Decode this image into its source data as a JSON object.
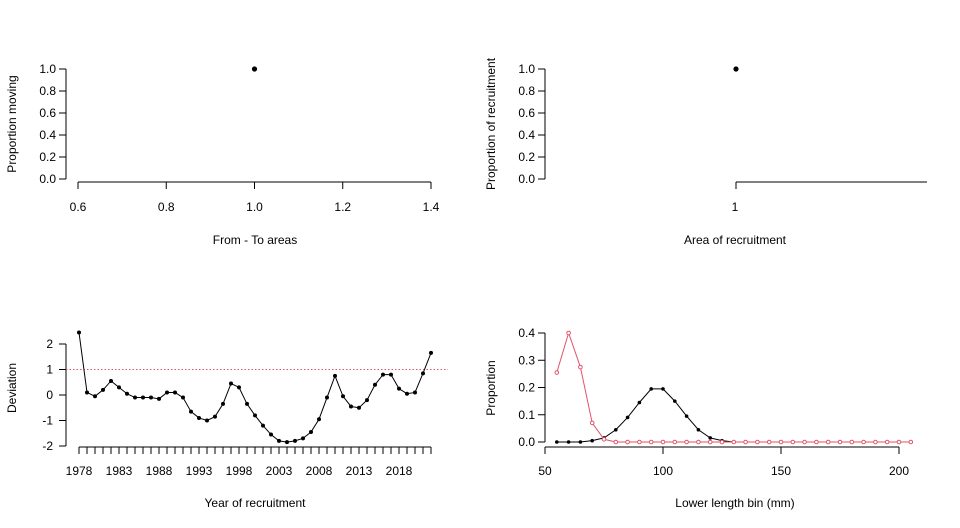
{
  "chart_data": [
    {
      "type": "scatter",
      "xlabel": "From - To areas",
      "ylabel": "Proportion moving",
      "xlim": [
        0.6,
        1.4
      ],
      "ylim": [
        0,
        1
      ],
      "xticks": [
        "0.6",
        "0.8",
        "1.0",
        "1.2",
        "1.4"
      ],
      "yticks": [
        "0.0",
        "0.2",
        "0.4",
        "0.6",
        "0.8",
        "1.0"
      ],
      "points": [
        {
          "x": 1.0,
          "y": 1.0
        }
      ]
    },
    {
      "type": "scatter",
      "xlabel": "Area of recruitment",
      "ylabel": "Proportion of recruitment",
      "xticks": [
        "1"
      ],
      "yticks": [
        "0.0",
        "0.2",
        "0.4",
        "0.6",
        "0.8",
        "1.0"
      ],
      "ylim": [
        0,
        1
      ],
      "points": [
        {
          "x": 1,
          "y": 1.0
        }
      ]
    },
    {
      "type": "line",
      "xlabel": "Year of recruitment",
      "ylabel": "Deviation",
      "xlim": [
        1978,
        2022
      ],
      "ylim": [
        -2,
        2
      ],
      "xticks": [
        "1978",
        "1983",
        "1988",
        "1993",
        "1998",
        "2003",
        "2008",
        "2013",
        "2018"
      ],
      "yticks": [
        "-2",
        "-1",
        "0",
        "1",
        "2"
      ],
      "reference_line": {
        "y": 1,
        "color": "#df536b",
        "style": "dotted"
      },
      "x": [
        1978,
        1979,
        1980,
        1981,
        1982,
        1983,
        1984,
        1985,
        1986,
        1987,
        1988,
        1989,
        1990,
        1991,
        1992,
        1993,
        1994,
        1995,
        1996,
        1997,
        1998,
        1999,
        2000,
        2001,
        2002,
        2003,
        2004,
        2005,
        2006,
        2007,
        2008,
        2009,
        2010,
        2011,
        2012,
        2013,
        2014,
        2015,
        2016,
        2017,
        2018,
        2019,
        2020,
        2021,
        2022
      ],
      "values": [
        2.45,
        0.1,
        -0.05,
        0.2,
        0.55,
        0.3,
        0.05,
        -0.1,
        -0.1,
        -0.1,
        -0.15,
        0.1,
        0.1,
        -0.1,
        -0.65,
        -0.9,
        -1.0,
        -0.85,
        -0.35,
        0.45,
        0.3,
        -0.35,
        -0.8,
        -1.2,
        -1.55,
        -1.8,
        -1.85,
        -1.8,
        -1.7,
        -1.45,
        -0.95,
        -0.1,
        0.75,
        -0.05,
        -0.45,
        -0.5,
        -0.2,
        0.4,
        0.8,
        0.8,
        0.25,
        0.05,
        0.1,
        0.85,
        1.65
      ]
    },
    {
      "type": "line",
      "xlabel": "Lower length bin (mm)",
      "ylabel": "Proportion",
      "xlim": [
        50,
        210
      ],
      "ylim": [
        0,
        0.4
      ],
      "xticks": [
        "50",
        "100",
        "150",
        "200"
      ],
      "yticks": [
        "0.0",
        "0.1",
        "0.2",
        "0.3",
        "0.4"
      ],
      "x": [
        55,
        60,
        65,
        70,
        75,
        80,
        85,
        90,
        95,
        100,
        105,
        110,
        115,
        120,
        125,
        130,
        135,
        140,
        145,
        150,
        155,
        160,
        165,
        170,
        175,
        180,
        185,
        190,
        195,
        200,
        205
      ],
      "series": [
        {
          "color": "#000000",
          "values": [
            0.0,
            0.0,
            0.0,
            0.005,
            0.015,
            0.045,
            0.09,
            0.145,
            0.195,
            0.195,
            0.15,
            0.095,
            0.045,
            0.015,
            0.005,
            0.0,
            0.0,
            0.0,
            0.0,
            0.0,
            0.0,
            0.0,
            0.0,
            0.0,
            0.0,
            0.0,
            0.0,
            0.0,
            0.0,
            0.0,
            0.0
          ]
        },
        {
          "color": "#df536b",
          "values": [
            0.255,
            0.4,
            0.275,
            0.07,
            0.01,
            0.0,
            0.0,
            0.0,
            0.0,
            0.0,
            0.0,
            0.0,
            0.0,
            0.0,
            0.0,
            0.0,
            0.0,
            0.0,
            0.0,
            0.0,
            0.0,
            0.0,
            0.0,
            0.0,
            0.0,
            0.0,
            0.0,
            0.0,
            0.0,
            0.0,
            0.0
          ]
        }
      ]
    }
  ]
}
